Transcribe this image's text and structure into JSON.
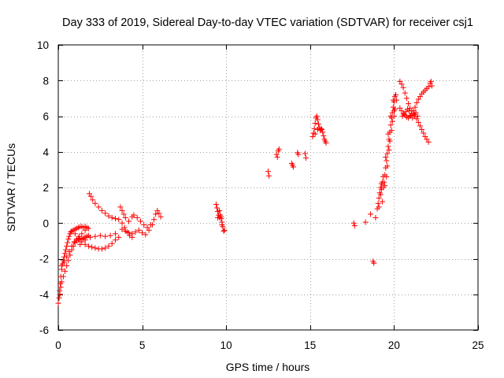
{
  "chart_data": {
    "type": "scatter",
    "title": "Day 333 of 2019, Sidereal Day-to-day VTEC variation (SDTVAR) for receiver csj1",
    "xlabel": "GPS time / hours",
    "ylabel": "SDTVAR / TECUs",
    "xlim": [
      0,
      25
    ],
    "ylim": [
      -6,
      10
    ],
    "xticks": [
      0,
      5,
      10,
      15,
      20,
      25
    ],
    "yticks": [
      -6,
      -4,
      -2,
      0,
      2,
      4,
      6,
      8,
      10
    ],
    "grid": true,
    "marker": "+",
    "marker_color": "#ff0000",
    "series": [
      {
        "name": "SDTVAR",
        "points": [
          [
            0.0,
            -4.5
          ],
          [
            0.05,
            -4.2
          ],
          [
            0.08,
            -3.8
          ],
          [
            0.12,
            -3.4
          ],
          [
            0.15,
            -3.0
          ],
          [
            0.2,
            -2.6
          ],
          [
            0.25,
            -2.3
          ],
          [
            0.3,
            -2.1
          ],
          [
            0.35,
            -1.9
          ],
          [
            0.4,
            -1.7
          ],
          [
            0.45,
            -1.5
          ],
          [
            0.5,
            -1.3
          ],
          [
            0.55,
            -1.1
          ],
          [
            0.6,
            -0.9
          ],
          [
            0.65,
            -0.75
          ],
          [
            0.7,
            -0.6
          ],
          [
            0.75,
            -0.5
          ],
          [
            0.8,
            -0.45
          ],
          [
            0.9,
            -0.4
          ],
          [
            1.0,
            -0.35
          ],
          [
            1.1,
            -0.3
          ],
          [
            1.2,
            -0.25
          ],
          [
            1.3,
            -0.2
          ],
          [
            1.4,
            -0.2
          ],
          [
            1.5,
            -0.25
          ],
          [
            1.6,
            -0.2
          ],
          [
            1.7,
            -0.25
          ],
          [
            1.8,
            -0.3
          ],
          [
            0.1,
            -4.0
          ],
          [
            0.15,
            -3.6
          ],
          [
            0.2,
            -3.3
          ],
          [
            0.3,
            -3.0
          ],
          [
            0.4,
            -2.7
          ],
          [
            0.5,
            -2.4
          ],
          [
            0.6,
            -2.1
          ],
          [
            0.7,
            -1.8
          ],
          [
            0.8,
            -1.5
          ],
          [
            0.9,
            -1.3
          ],
          [
            1.0,
            -1.1
          ],
          [
            1.1,
            -1.0
          ],
          [
            1.2,
            -0.95
          ],
          [
            1.3,
            -0.9
          ],
          [
            1.4,
            -0.9
          ],
          [
            1.5,
            -0.85
          ],
          [
            1.6,
            -0.8
          ],
          [
            1.7,
            -0.75
          ],
          [
            1.8,
            -0.7
          ],
          [
            0.2,
            -2.4
          ],
          [
            0.35,
            -2.2
          ],
          [
            0.5,
            -1.9
          ],
          [
            0.65,
            -1.6
          ],
          [
            0.8,
            -1.3
          ],
          [
            0.95,
            -1.05
          ],
          [
            1.1,
            -0.9
          ],
          [
            1.25,
            -0.75
          ],
          [
            1.4,
            -0.6
          ],
          [
            1.6,
            -0.4
          ],
          [
            1.0,
            -0.6
          ],
          [
            1.2,
            -0.85
          ],
          [
            1.4,
            -1.05
          ],
          [
            1.6,
            -1.2
          ],
          [
            1.8,
            -1.3
          ],
          [
            2.0,
            -1.35
          ],
          [
            2.2,
            -1.4
          ],
          [
            2.4,
            -1.45
          ],
          [
            2.6,
            -1.45
          ],
          [
            2.8,
            -1.4
          ],
          [
            3.0,
            -1.3
          ],
          [
            3.2,
            -1.15
          ],
          [
            3.4,
            -0.95
          ],
          [
            3.6,
            -0.8
          ],
          [
            1.3,
            -1.2
          ],
          [
            1.6,
            -0.95
          ],
          [
            1.9,
            -0.8
          ],
          [
            2.2,
            -0.75
          ],
          [
            2.5,
            -0.7
          ],
          [
            2.8,
            -0.75
          ],
          [
            3.1,
            -0.7
          ],
          [
            3.4,
            -0.6
          ],
          [
            1.85,
            1.65
          ],
          [
            1.95,
            1.5
          ],
          [
            2.05,
            1.3
          ],
          [
            2.2,
            1.1
          ],
          [
            2.4,
            0.9
          ],
          [
            2.6,
            0.7
          ],
          [
            2.8,
            0.55
          ],
          [
            3.0,
            0.4
          ],
          [
            3.2,
            0.3
          ],
          [
            3.4,
            0.25
          ],
          [
            3.6,
            0.2
          ],
          [
            3.8,
            0.0
          ],
          [
            3.95,
            -0.25
          ],
          [
            4.1,
            -0.5
          ],
          [
            4.25,
            -0.7
          ],
          [
            4.4,
            -0.8
          ],
          [
            3.7,
            0.9
          ],
          [
            3.8,
            0.7
          ],
          [
            3.9,
            0.5
          ],
          [
            4.0,
            0.3
          ],
          [
            4.2,
            0.1
          ],
          [
            4.4,
            0.35
          ],
          [
            4.5,
            0.45
          ],
          [
            4.7,
            0.3
          ],
          [
            4.9,
            0.1
          ],
          [
            5.1,
            -0.1
          ],
          [
            5.3,
            -0.25
          ],
          [
            5.5,
            -0.1
          ],
          [
            5.7,
            0.2
          ],
          [
            5.8,
            0.5
          ],
          [
            5.9,
            0.7
          ],
          [
            6.0,
            0.55
          ],
          [
            6.1,
            0.35
          ],
          [
            3.8,
            -0.35
          ],
          [
            4.0,
            -0.45
          ],
          [
            4.2,
            -0.55
          ],
          [
            4.4,
            -0.6
          ],
          [
            4.6,
            -0.5
          ],
          [
            4.8,
            -0.4
          ],
          [
            5.0,
            -0.55
          ],
          [
            5.2,
            -0.65
          ],
          [
            5.4,
            -0.4
          ],
          [
            5.6,
            -0.1
          ],
          [
            9.4,
            1.05
          ],
          [
            9.45,
            0.85
          ],
          [
            9.5,
            0.65
          ],
          [
            9.55,
            0.45
          ],
          [
            9.6,
            0.3
          ],
          [
            9.65,
            0.45
          ],
          [
            9.7,
            0.25
          ],
          [
            9.75,
            0.05
          ],
          [
            9.8,
            -0.2
          ],
          [
            9.85,
            -0.45
          ],
          [
            9.9,
            -0.4
          ],
          [
            9.5,
            0.3
          ],
          [
            9.7,
            0.35
          ],
          [
            9.6,
            0.7
          ],
          [
            9.75,
            -0.1
          ],
          [
            12.5,
            2.9
          ],
          [
            12.55,
            2.65
          ],
          [
            13.0,
            3.85
          ],
          [
            13.05,
            3.7
          ],
          [
            13.1,
            4.05
          ],
          [
            13.15,
            4.15
          ],
          [
            13.9,
            3.35
          ],
          [
            13.95,
            3.25
          ],
          [
            14.0,
            3.15
          ],
          [
            14.25,
            3.95
          ],
          [
            14.3,
            3.85
          ],
          [
            14.7,
            3.9
          ],
          [
            14.75,
            3.65
          ],
          [
            15.15,
            4.85
          ],
          [
            15.2,
            5.05
          ],
          [
            15.25,
            5.3
          ],
          [
            15.3,
            5.6
          ],
          [
            15.35,
            5.9
          ],
          [
            15.4,
            6.0
          ],
          [
            15.45,
            5.8
          ],
          [
            15.5,
            5.55
          ],
          [
            15.55,
            5.35
          ],
          [
            15.6,
            5.2
          ],
          [
            15.65,
            5.3
          ],
          [
            15.7,
            5.25
          ],
          [
            15.75,
            5.1
          ],
          [
            15.8,
            4.9
          ],
          [
            15.85,
            4.7
          ],
          [
            15.9,
            4.6
          ],
          [
            15.95,
            4.5
          ],
          [
            15.3,
            5.0
          ],
          [
            15.45,
            5.25
          ],
          [
            17.6,
            0.0
          ],
          [
            17.65,
            -0.15
          ],
          [
            18.3,
            0.05
          ],
          [
            18.6,
            0.5
          ],
          [
            18.75,
            -2.15
          ],
          [
            18.8,
            -2.25
          ],
          [
            18.9,
            0.3
          ],
          [
            19.0,
            0.8
          ],
          [
            19.05,
            1.1
          ],
          [
            19.1,
            1.4
          ],
          [
            19.15,
            1.7
          ],
          [
            19.2,
            2.0
          ],
          [
            19.25,
            2.2
          ],
          [
            19.3,
            2.3
          ],
          [
            19.35,
            2.0
          ],
          [
            19.4,
            2.3
          ],
          [
            19.45,
            2.7
          ],
          [
            19.5,
            3.1
          ],
          [
            19.55,
            3.5
          ],
          [
            19.6,
            3.9
          ],
          [
            19.65,
            4.3
          ],
          [
            19.7,
            4.7
          ],
          [
            19.75,
            5.1
          ],
          [
            19.8,
            5.5
          ],
          [
            19.85,
            5.9
          ],
          [
            19.9,
            6.2
          ],
          [
            19.95,
            6.5
          ],
          [
            20.0,
            6.8
          ],
          [
            20.05,
            7.1
          ],
          [
            20.1,
            7.2
          ],
          [
            19.2,
            1.6
          ],
          [
            19.35,
            2.6
          ],
          [
            19.5,
            3.7
          ],
          [
            19.65,
            5.0
          ],
          [
            19.8,
            6.0
          ],
          [
            19.95,
            6.9
          ],
          [
            20.0,
            6.3
          ],
          [
            19.1,
            0.9
          ],
          [
            19.25,
            1.9
          ],
          [
            19.55,
            2.6
          ],
          [
            19.6,
            3.2
          ],
          [
            19.7,
            4.1
          ],
          [
            19.75,
            4.6
          ],
          [
            19.85,
            5.2
          ],
          [
            19.9,
            5.7
          ],
          [
            20.0,
            6.0
          ],
          [
            20.05,
            6.4
          ],
          [
            20.15,
            6.9
          ],
          [
            19.3,
            1.2
          ],
          [
            19.45,
            2.1
          ],
          [
            20.35,
            7.95
          ],
          [
            20.45,
            7.8
          ],
          [
            20.55,
            7.6
          ],
          [
            20.65,
            7.3
          ],
          [
            20.75,
            7.0
          ],
          [
            20.85,
            6.7
          ],
          [
            20.95,
            6.45
          ],
          [
            21.05,
            6.3
          ],
          [
            21.15,
            6.15
          ],
          [
            21.25,
            6.0
          ],
          [
            21.35,
            5.85
          ],
          [
            21.45,
            5.65
          ],
          [
            21.55,
            5.45
          ],
          [
            21.65,
            5.25
          ],
          [
            21.75,
            5.05
          ],
          [
            21.85,
            4.85
          ],
          [
            21.95,
            4.7
          ],
          [
            22.05,
            4.55
          ],
          [
            20.35,
            6.45
          ],
          [
            20.45,
            6.3
          ],
          [
            20.55,
            6.15
          ],
          [
            20.65,
            6.05
          ],
          [
            20.75,
            5.95
          ],
          [
            20.85,
            5.9
          ],
          [
            20.95,
            6.0
          ],
          [
            21.05,
            6.15
          ],
          [
            21.15,
            6.3
          ],
          [
            21.25,
            6.5
          ],
          [
            21.35,
            6.75
          ],
          [
            21.45,
            6.95
          ],
          [
            21.55,
            7.1
          ],
          [
            21.65,
            7.25
          ],
          [
            21.75,
            7.35
          ],
          [
            21.85,
            7.45
          ],
          [
            21.95,
            7.55
          ],
          [
            22.05,
            7.65
          ],
          [
            20.5,
            6.0
          ],
          [
            20.6,
            6.1
          ],
          [
            20.7,
            6.25
          ],
          [
            20.8,
            6.4
          ],
          [
            20.9,
            6.3
          ],
          [
            21.0,
            6.05
          ],
          [
            21.1,
            5.9
          ],
          [
            21.2,
            6.1
          ],
          [
            21.3,
            6.2
          ],
          [
            21.4,
            6.0
          ],
          [
            22.15,
            7.85
          ],
          [
            22.2,
            7.95
          ],
          [
            22.25,
            7.7
          ]
        ]
      }
    ]
  }
}
